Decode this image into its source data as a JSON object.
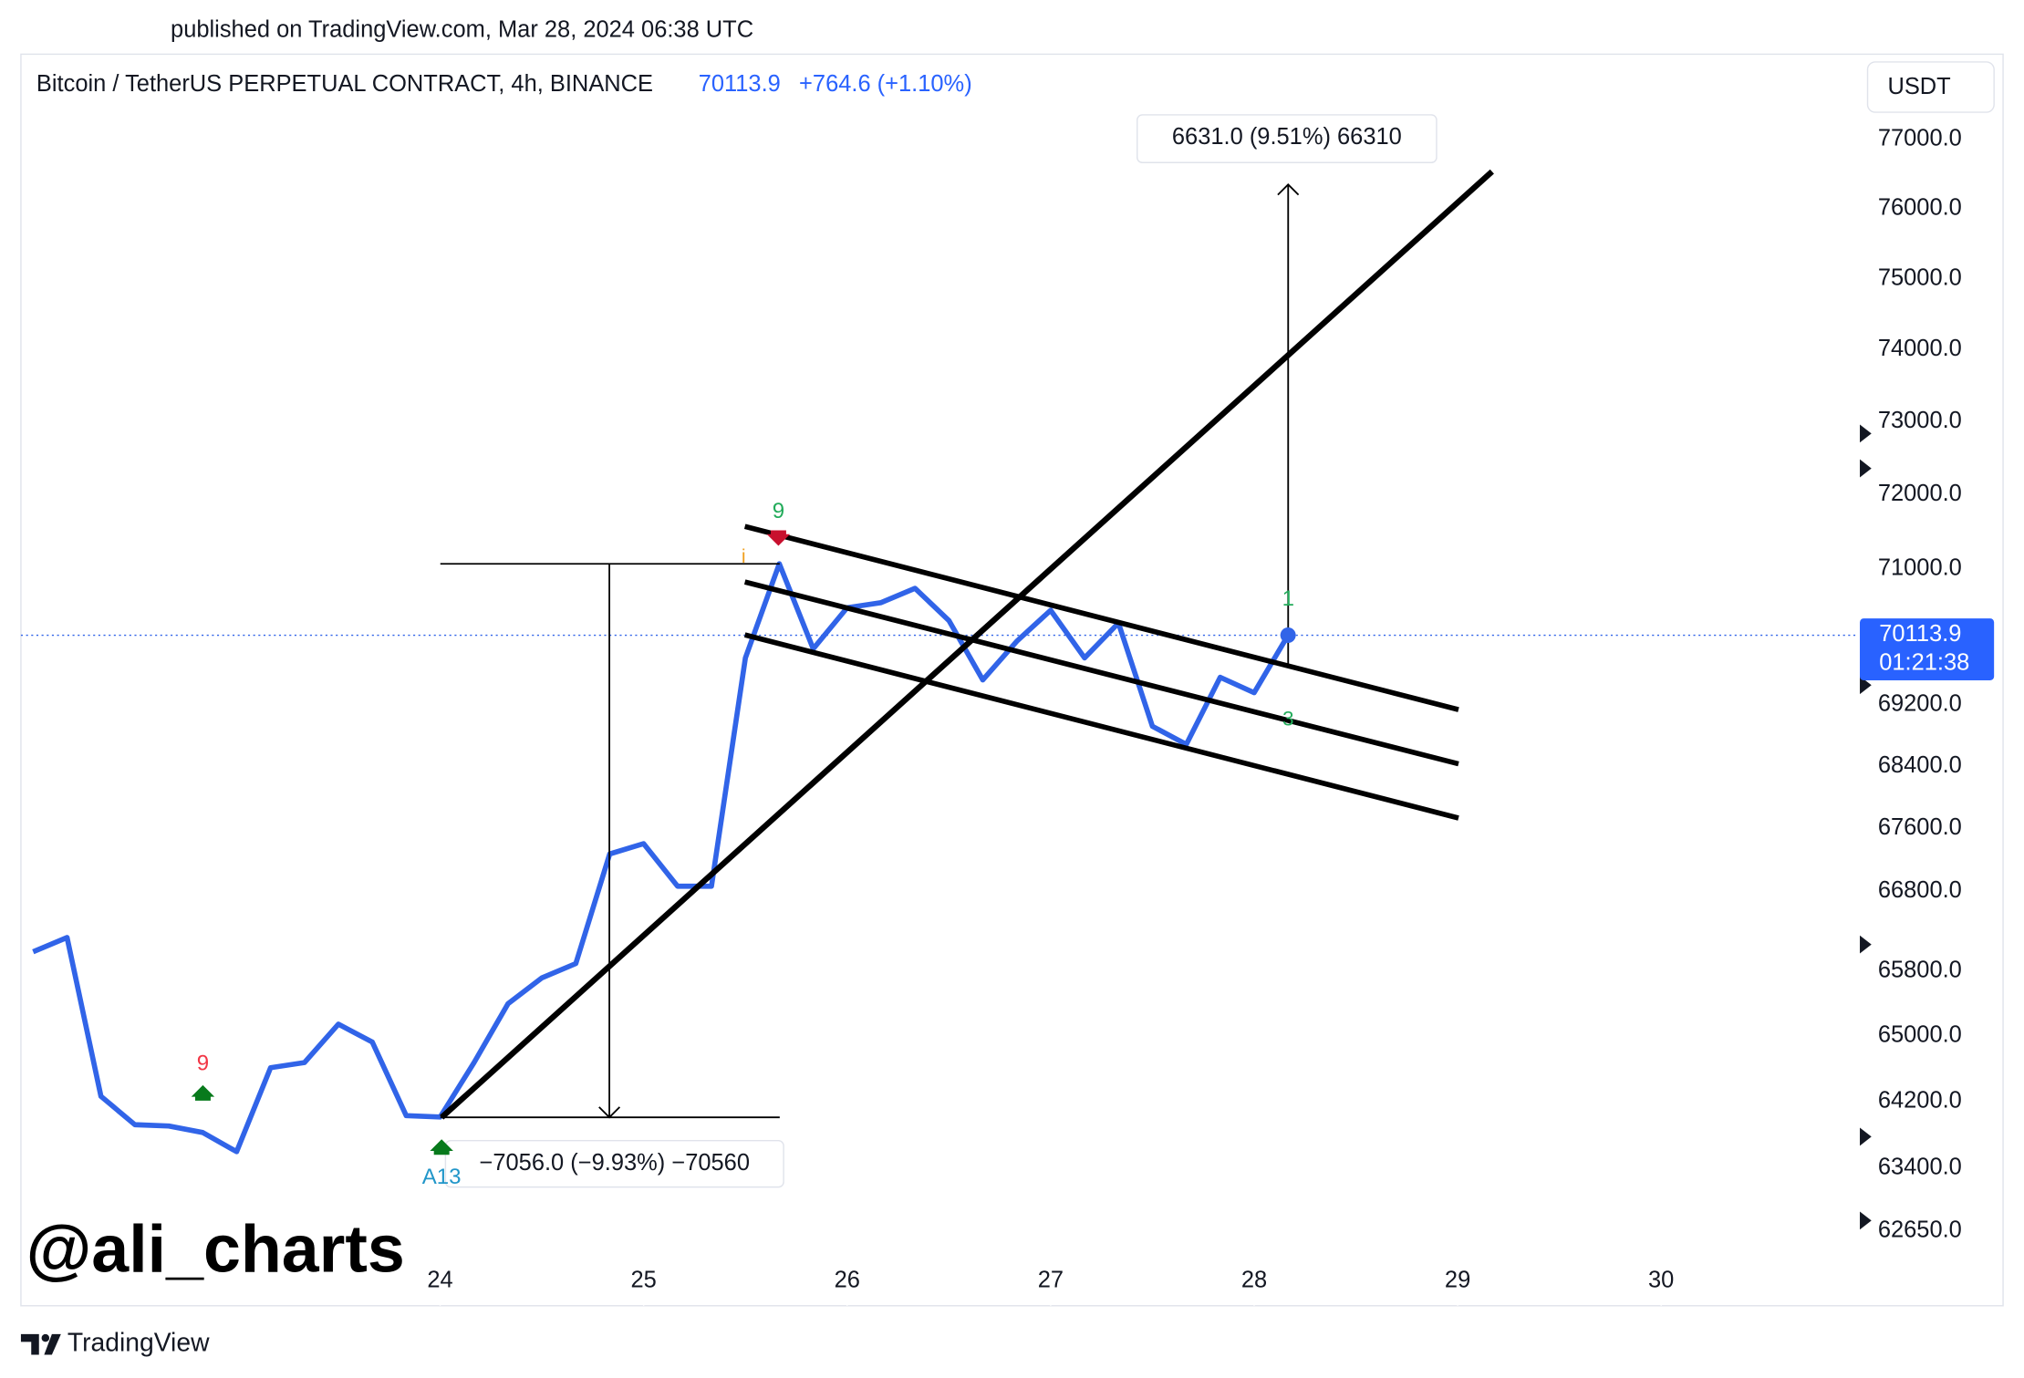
{
  "header": {
    "published": "published on TradingView.com, Mar 28, 2024 06:38 UTC",
    "symbol": "Bitcoin / TetherUS PERPETUAL CONTRACT, 4h, BINANCE",
    "change": "+764.6 (+1.10%)"
  },
  "chart_data": {
    "type": "line",
    "color": "#3164e8",
    "y_scale": "log",
    "currency": "USDT",
    "countdown": "01:21:38",
    "x": [
      22,
      22.1667,
      22.3333,
      22.5,
      22.6667,
      22.8333,
      23,
      23.1667,
      23.3333,
      23.5,
      23.6667,
      23.8333,
      24,
      24.1667,
      24.3333,
      24.5,
      24.6667,
      24.8333,
      25,
      25.1667,
      25.3333,
      25.5,
      25.6667,
      25.8333,
      26,
      26.1667,
      26.3333,
      26.5,
      26.6667,
      26.8333,
      27,
      27.1667,
      27.3333,
      27.5,
      27.6667,
      27.8333,
      28,
      28.1667
    ],
    "values": [
      66043,
      66221,
      64264,
      63920,
      63904,
      63826,
      63595,
      64612,
      64675,
      65146,
      64926,
      64029,
      64013,
      64675,
      65397,
      65718,
      65896,
      67275,
      67406,
      66866,
      66866,
      69814,
      71067,
      69934,
      70479,
      70547,
      70738,
      70309,
      69524,
      70033,
      70445,
      69814,
      70275,
      68918,
      68682,
      69559,
      69357,
      70113.9
    ],
    "xlim": [
      21.94,
      30.97
    ],
    "xticks": [
      24,
      25,
      26,
      27,
      28,
      29,
      30
    ],
    "ylim": [
      62330,
      78250
    ],
    "yticks": [
      {
        "value": 77000,
        "label": "77000.0"
      },
      {
        "value": 76000,
        "label": "76000.0"
      },
      {
        "value": 75000,
        "label": "75000.0"
      },
      {
        "value": 74000,
        "label": "74000.0"
      },
      {
        "value": 73000,
        "label": "73000.0"
      },
      {
        "value": 72000,
        "label": "72000.0"
      },
      {
        "value": 71000,
        "label": "71000.0"
      },
      {
        "value": 69200,
        "label": "69200.0"
      },
      {
        "value": 68400,
        "label": "68400.0"
      },
      {
        "value": 67600,
        "label": "67600.0"
      },
      {
        "value": 66800,
        "label": "66800.0"
      },
      {
        "value": 65800,
        "label": "65800.0"
      },
      {
        "value": 65000,
        "label": "65000.0"
      },
      {
        "value": 64200,
        "label": "64200.0"
      },
      {
        "value": 63400,
        "label": "63400.0"
      },
      {
        "value": 62650,
        "label": "62650.0"
      }
    ],
    "annotations": {
      "target": "6631.0 (9.51%) 66310",
      "pole": "−7056.0 (−9.93%) −70560"
    },
    "signals": {
      "sell_count": "9",
      "buy_count": "9",
      "a13": "A13",
      "info": "i",
      "one": "1",
      "three": "3"
    }
  },
  "watermark": "@ali_charts",
  "footer": "TradingView"
}
